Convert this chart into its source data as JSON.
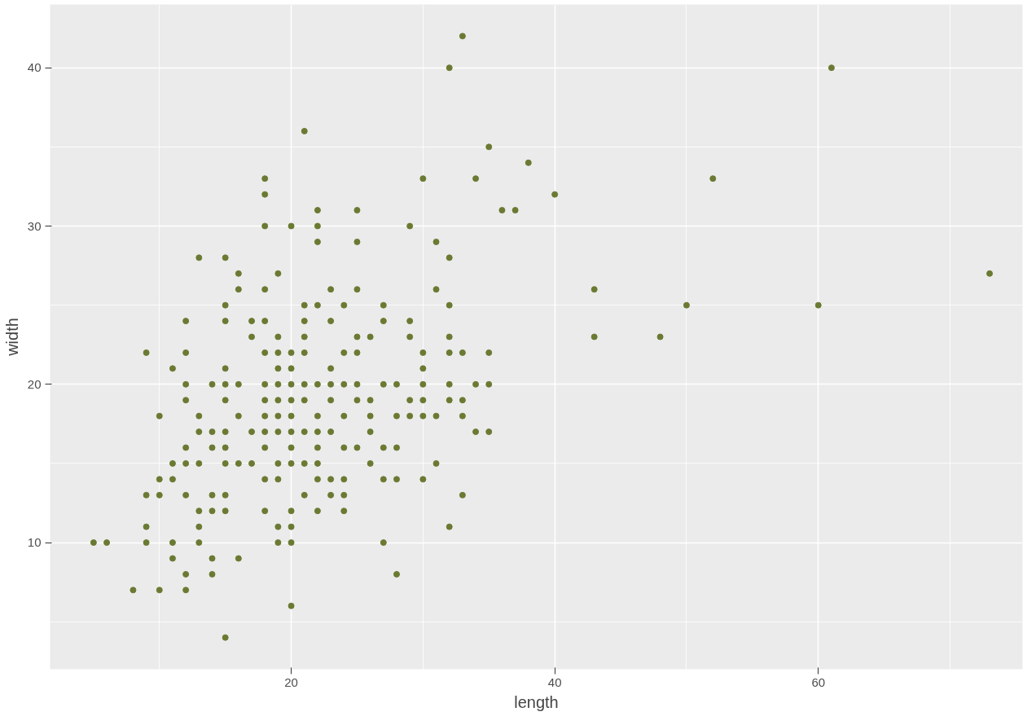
{
  "chart_data": {
    "type": "scatter",
    "xlabel": "length",
    "ylabel": "width",
    "x": [
      33,
      32,
      61,
      21,
      35,
      38,
      18,
      30,
      34,
      52,
      18,
      40,
      22,
      25,
      36,
      37,
      18,
      20,
      22,
      29,
      22,
      25,
      31,
      13,
      15,
      32,
      16,
      19,
      73,
      16,
      18,
      23,
      25,
      31,
      43,
      15,
      21,
      22,
      24,
      27,
      32,
      50,
      60,
      12,
      15,
      17,
      18,
      21,
      23,
      27,
      29,
      17,
      19,
      21,
      25,
      26,
      29,
      32,
      43,
      48,
      9,
      12,
      18,
      19,
      20,
      21,
      24,
      25,
      30,
      32,
      33,
      35,
      11,
      15,
      19,
      20,
      23,
      30,
      12,
      14,
      15,
      16,
      18,
      19,
      20,
      21,
      22,
      23,
      24,
      25,
      27,
      28,
      30,
      32,
      34,
      35,
      12,
      15,
      18,
      19,
      20,
      21,
      23,
      25,
      26,
      29,
      30,
      32,
      33,
      10,
      13,
      16,
      18,
      19,
      20,
      22,
      24,
      26,
      28,
      29,
      30,
      31,
      33,
      13,
      14,
      15,
      17,
      18,
      19,
      20,
      21,
      22,
      23,
      26,
      34,
      35,
      12,
      14,
      15,
      18,
      20,
      22,
      24,
      25,
      27,
      28,
      11,
      12,
      13,
      15,
      16,
      17,
      19,
      20,
      21,
      22,
      26,
      31,
      10,
      11,
      18,
      19,
      22,
      23,
      24,
      27,
      28,
      30,
      9,
      10,
      12,
      14,
      15,
      21,
      23,
      24,
      33,
      13,
      14,
      15,
      18,
      20,
      22,
      24,
      9,
      13,
      19,
      20,
      32,
      5,
      6,
      9,
      11,
      13,
      19,
      20,
      27,
      11,
      14,
      16,
      12,
      14,
      28,
      8,
      10,
      12,
      20,
      15
    ],
    "values": [
      42,
      40,
      40,
      36,
      35,
      34,
      33,
      33,
      33,
      33,
      32,
      32,
      31,
      31,
      31,
      31,
      30,
      30,
      30,
      30,
      29,
      29,
      29,
      28,
      28,
      28,
      27,
      27,
      27,
      26,
      26,
      26,
      26,
      26,
      26,
      25,
      25,
      25,
      25,
      25,
      25,
      25,
      25,
      24,
      24,
      24,
      24,
      24,
      24,
      24,
      24,
      23,
      23,
      23,
      23,
      23,
      23,
      23,
      23,
      23,
      22,
      22,
      22,
      22,
      22,
      22,
      22,
      22,
      22,
      22,
      22,
      22,
      21,
      21,
      21,
      21,
      21,
      21,
      20,
      20,
      20,
      20,
      20,
      20,
      20,
      20,
      20,
      20,
      20,
      20,
      20,
      20,
      20,
      20,
      20,
      20,
      19,
      19,
      19,
      19,
      19,
      19,
      19,
      19,
      19,
      19,
      19,
      19,
      19,
      18,
      18,
      18,
      18,
      18,
      18,
      18,
      18,
      18,
      18,
      18,
      18,
      18,
      18,
      17,
      17,
      17,
      17,
      17,
      17,
      17,
      17,
      17,
      17,
      17,
      17,
      17,
      16,
      16,
      16,
      16,
      16,
      16,
      16,
      16,
      16,
      16,
      15,
      15,
      15,
      15,
      15,
      15,
      15,
      15,
      15,
      15,
      15,
      15,
      14,
      14,
      14,
      14,
      14,
      14,
      14,
      14,
      14,
      14,
      13,
      13,
      13,
      13,
      13,
      13,
      13,
      13,
      13,
      12,
      12,
      12,
      12,
      12,
      12,
      12,
      11,
      11,
      11,
      11,
      11,
      10,
      10,
      10,
      10,
      10,
      10,
      10,
      10,
      9,
      9,
      9,
      8,
      8,
      8,
      7,
      7,
      7,
      6,
      4
    ],
    "color": "#6b7a32",
    "marker": "circle",
    "xlim": [
      1.7,
      75.5
    ],
    "ylim": [
      2,
      44
    ],
    "xticks": [
      20,
      40,
      60
    ],
    "yticks": [
      10,
      20,
      30,
      40
    ],
    "grid": true
  }
}
